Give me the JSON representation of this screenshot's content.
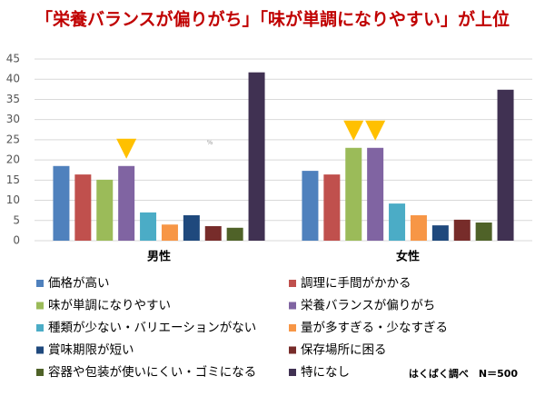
{
  "chart_data": {
    "type": "bar",
    "title": "「栄養バランスが偏りがち」「味が単調になりやすい」が上位",
    "unit": "%",
    "source": "はくばく調べ　N＝500",
    "categories": [
      "男性",
      "女性"
    ],
    "series": [
      {
        "name": "価格が高い",
        "color": "#4f81bd",
        "values": [
          18.5,
          17.3
        ]
      },
      {
        "name": "調理に手間がかかる",
        "color": "#c0504d",
        "values": [
          16.4,
          16.4
        ]
      },
      {
        "name": "味が単調になりやすい",
        "color": "#9bbb59",
        "values": [
          15.1,
          23.0
        ]
      },
      {
        "name": "栄養バランスが偏りがち",
        "color": "#8064a2",
        "values": [
          18.5,
          23.0
        ]
      },
      {
        "name": "種類が少ない・バリエーションがない",
        "color": "#4bacc6",
        "values": [
          7.0,
          9.2
        ]
      },
      {
        "name": "量が多すぎる・少なすぎる",
        "color": "#f79646",
        "values": [
          4.0,
          6.3
        ]
      },
      {
        "name": "賞味期限が短い",
        "color": "#1f497d",
        "values": [
          6.3,
          3.8
        ]
      },
      {
        "name": "保存場所に困る",
        "color": "#772c2a",
        "values": [
          3.6,
          5.2
        ]
      },
      {
        "name": "容器や包装が使いにくい・ゴミになる",
        "color": "#4f6228",
        "values": [
          3.2,
          4.5
        ]
      },
      {
        "name": "特になし",
        "color": "#403152",
        "values": [
          41.7,
          37.4
        ]
      }
    ],
    "ylim": [
      0,
      45
    ],
    "yticks": [
      0,
      5,
      10,
      15,
      20,
      25,
      30,
      35,
      40,
      45
    ],
    "grid": true
  }
}
